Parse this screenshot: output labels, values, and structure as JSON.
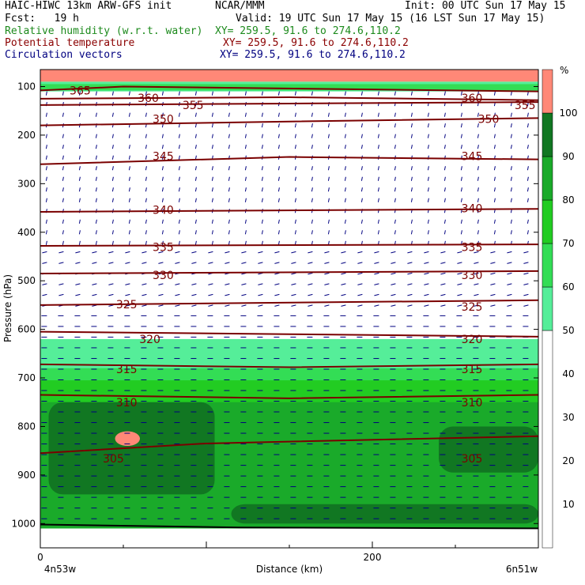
{
  "header": {
    "model": "HAIC-HIWC 13km ARW-GFS init",
    "org": "NCAR/MMM",
    "init": "Init: 00 UTC Sun 17 May 15",
    "fcst": "Fcst:   19 h",
    "valid": "Valid: 19 UTC Sun 17 May 15 (16 LST Sun 17 May 15)",
    "fields": [
      {
        "label": "Relative humidity (w.r.t. water)",
        "xy": "XY= 259.5, 91.6 to 274.6,110.2",
        "color": "#1c8a1c"
      },
      {
        "label": "Potential temperature",
        "xy": "XY= 259.5, 91.6 to 274.6,110.2",
        "color": "#8b0000"
      },
      {
        "label": "Circulation vectors",
        "xy": "XY= 259.5, 91.6 to 274.6,110.2",
        "color": "#000080"
      }
    ]
  },
  "colorbar": {
    "unit": "%",
    "ticks": [
      "10",
      "20",
      "30",
      "40",
      "50",
      "60",
      "70",
      "80",
      "90",
      "100"
    ],
    "levels": [
      {
        "from": 0,
        "to": 50,
        "color": "#ffffff"
      },
      {
        "from": 50,
        "to": 60,
        "color": "#55ee99"
      },
      {
        "from": 60,
        "to": 70,
        "color": "#33dd55"
      },
      {
        "from": 70,
        "to": 80,
        "color": "#22cc22"
      },
      {
        "from": 80,
        "to": 90,
        "color": "#1aaa2a"
      },
      {
        "from": 90,
        "to": 100,
        "color": "#117722"
      },
      {
        "from": 100,
        "to": 110,
        "color": "#ff8877"
      }
    ]
  },
  "chart_data": {
    "type": "heatmap",
    "xlabel": "Distance (km)",
    "ylabel": "Pressure (hPa)",
    "xlim": [
      0,
      300
    ],
    "ylim": [
      1050,
      65
    ],
    "x_ticks": [
      "0",
      "200"
    ],
    "x_tick_values": [
      0,
      200
    ],
    "y_ticks": [
      "100",
      "200",
      "300",
      "400",
      "500",
      "600",
      "700",
      "800",
      "900",
      "1000"
    ],
    "y_tick_values": [
      100,
      200,
      300,
      400,
      500,
      600,
      700,
      800,
      900,
      1000
    ],
    "endpoints": {
      "left": "4n53w",
      "right": "6n51w"
    },
    "theta_isentropes": [
      {
        "theta": "365",
        "x": [
          0,
          50,
          300
        ],
        "p": [
          108,
          100,
          110
        ],
        "labels": [
          {
            "x": 24,
            "p": 110
          }
        ]
      },
      {
        "theta": "360",
        "x": [
          0,
          150,
          300
        ],
        "p": [
          125,
          122,
          128
        ],
        "labels": [
          {
            "x": 65,
            "p": 125
          },
          {
            "x": 260,
            "p": 125
          }
        ]
      },
      {
        "theta": "355",
        "x": [
          0,
          150,
          300
        ],
        "p": [
          138,
          135,
          132
        ],
        "labels": [
          {
            "x": 92,
            "p": 140
          },
          {
            "x": 292,
            "p": 140
          }
        ]
      },
      {
        "theta": "350",
        "x": [
          0,
          150,
          300
        ],
        "p": [
          180,
          172,
          165
        ],
        "labels": [
          {
            "x": 74,
            "p": 168
          },
          {
            "x": 270,
            "p": 168
          }
        ]
      },
      {
        "theta": "345",
        "x": [
          0,
          150,
          300
        ],
        "p": [
          260,
          245,
          250
        ],
        "labels": [
          {
            "x": 74,
            "p": 245
          },
          {
            "x": 260,
            "p": 245
          }
        ]
      },
      {
        "theta": "340",
        "x": [
          0,
          300
        ],
        "p": [
          358,
          352
        ],
        "labels": [
          {
            "x": 74,
            "p": 356
          },
          {
            "x": 260,
            "p": 352
          }
        ]
      },
      {
        "theta": "335",
        "x": [
          0,
          300
        ],
        "p": [
          428,
          425
        ],
        "labels": [
          {
            "x": 74,
            "p": 432
          },
          {
            "x": 260,
            "p": 432
          }
        ]
      },
      {
        "theta": "330",
        "x": [
          0,
          300
        ],
        "p": [
          485,
          480
        ],
        "labels": [
          {
            "x": 74,
            "p": 490
          },
          {
            "x": 260,
            "p": 490
          }
        ]
      },
      {
        "theta": "325",
        "x": [
          0,
          300
        ],
        "p": [
          550,
          540
        ],
        "labels": [
          {
            "x": 52,
            "p": 550
          },
          {
            "x": 260,
            "p": 555
          }
        ]
      },
      {
        "theta": "320",
        "x": [
          0,
          150,
          300
        ],
        "p": [
          605,
          610,
          615
        ],
        "labels": [
          {
            "x": 66,
            "p": 622
          },
          {
            "x": 260,
            "p": 622
          }
        ]
      },
      {
        "theta": "315",
        "x": [
          0,
          150,
          300
        ],
        "p": [
          672,
          678,
          672
        ],
        "labels": [
          {
            "x": 52,
            "p": 684
          },
          {
            "x": 260,
            "p": 684
          }
        ]
      },
      {
        "theta": "310",
        "x": [
          0,
          150,
          300
        ],
        "p": [
          735,
          742,
          735
        ],
        "labels": [
          {
            "x": 52,
            "p": 752
          },
          {
            "x": 260,
            "p": 752
          }
        ]
      },
      {
        "theta": "305",
        "x": [
          0,
          100,
          300
        ],
        "p": [
          855,
          835,
          820
        ],
        "labels": [
          {
            "x": 44,
            "p": 868
          },
          {
            "x": 260,
            "p": 868
          }
        ]
      }
    ],
    "rh_regions": [
      {
        "level": 100,
        "x": [
          0,
          300
        ],
        "p_top": 65,
        "p_bottom": 90
      },
      {
        "level": 50,
        "x": [
          0,
          300
        ],
        "p_top": 90,
        "p_bottom": 110
      },
      {
        "level": 60,
        "x": [
          0,
          300
        ],
        "p_top": 95,
        "p_bottom": 108
      },
      {
        "level": 50,
        "x": [
          0,
          300
        ],
        "p_top": 620,
        "p_bottom": 1010
      },
      {
        "level": 60,
        "x": [
          0,
          300
        ],
        "p_top": 680,
        "p_bottom": 1010
      },
      {
        "level": 70,
        "x": [
          0,
          300
        ],
        "p_top": 705,
        "p_bottom": 1010
      },
      {
        "level": 80,
        "x": [
          0,
          300
        ],
        "p_top": 750,
        "p_bottom": 1010
      },
      {
        "level": 90,
        "x": [
          5,
          105
        ],
        "p_top": 750,
        "p_bottom": 940
      },
      {
        "level": 90,
        "x": [
          240,
          300
        ],
        "p_top": 800,
        "p_bottom": 895
      },
      {
        "level": 90,
        "x": [
          115,
          300
        ],
        "p_top": 960,
        "p_bottom": 1000
      },
      {
        "level": 100,
        "x": [
          45,
          60
        ],
        "p_top": 810,
        "p_bottom": 840
      }
    ],
    "circulation_vectors": "easterly (leftward) flow below ~550 hPa; weak near-vertical flow aloft",
    "grid": false,
    "legend": "right"
  }
}
